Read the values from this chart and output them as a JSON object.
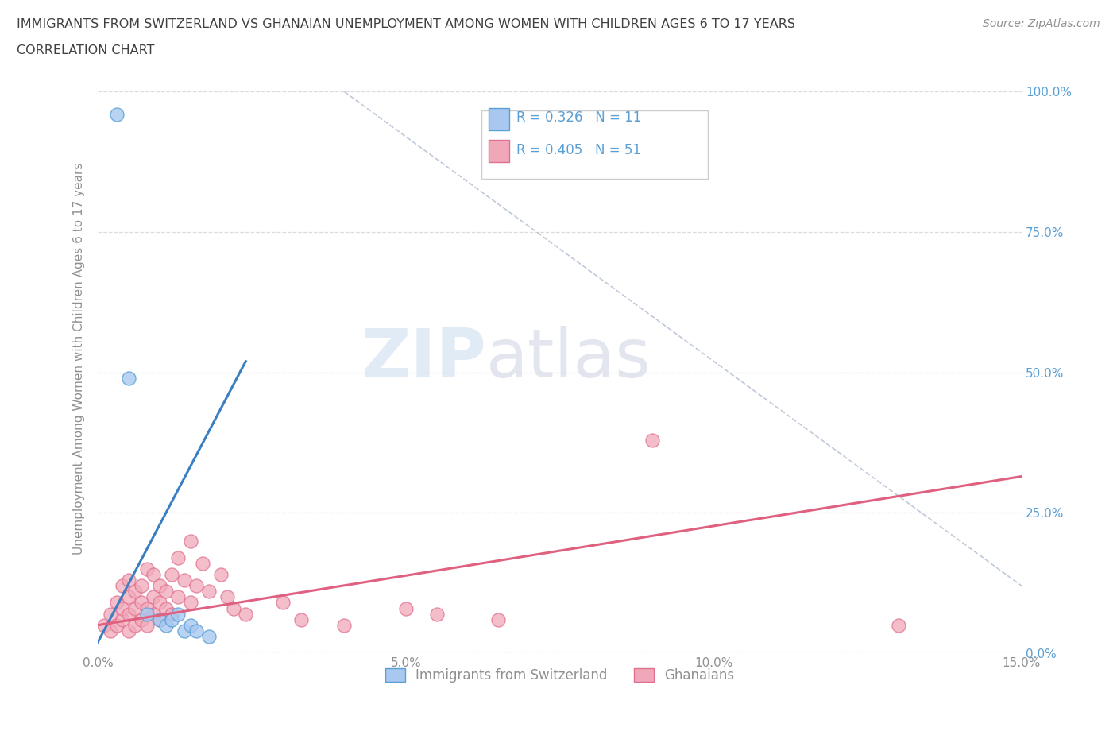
{
  "title_line1": "IMMIGRANTS FROM SWITZERLAND VS GHANAIAN UNEMPLOYMENT AMONG WOMEN WITH CHILDREN AGES 6 TO 17 YEARS",
  "title_line2": "CORRELATION CHART",
  "source_text": "Source: ZipAtlas.com",
  "ylabel": "Unemployment Among Women with Children Ages 6 to 17 years",
  "xlim": [
    0.0,
    0.15
  ],
  "ylim": [
    0.0,
    1.05
  ],
  "xticks": [
    0.0,
    0.05,
    0.1,
    0.15
  ],
  "xtick_labels": [
    "0.0%",
    "5.0%",
    "10.0%",
    "15.0%"
  ],
  "yticks": [
    0.0,
    0.25,
    0.5,
    0.75,
    1.0
  ],
  "ytick_labels_right": [
    "0.0%",
    "25.0%",
    "50.0%",
    "75.0%",
    "100.0%"
  ],
  "swiss_color": "#a8c8f0",
  "swiss_edge_color": "#5a9fd4",
  "swiss_line_color": "#3a7fc1",
  "ghanaian_color": "#f0a8b8",
  "ghanaian_edge_color": "#e07090",
  "ghanaian_line_color": "#e06080",
  "r_swiss": 0.326,
  "n_swiss": 11,
  "r_ghanaian": 0.405,
  "n_ghanaian": 51,
  "legend_swiss": "Immigrants from Switzerland",
  "legend_ghanaian": "Ghanaians",
  "watermark_zip": "ZIP",
  "watermark_atlas": "atlas",
  "background_color": "#ffffff",
  "grid_color": "#d8d8d8",
  "title_color": "#404040",
  "axis_color": "#909090",
  "right_axis_color": "#5a9fd4",
  "swiss_line_x1": 0.0,
  "swiss_line_y1": 0.02,
  "swiss_line_x2": 0.024,
  "swiss_line_y2": 0.52,
  "ghana_line_x1": 0.0,
  "ghana_line_y1": 0.05,
  "ghana_line_x2": 0.15,
  "ghana_line_y2": 0.315,
  "ref_line_x1": 0.04,
  "ref_line_y1": 1.0,
  "ref_line_x2": 0.15,
  "ref_line_y2": 0.12,
  "swiss_scatter_x": [
    0.003,
    0.005,
    0.008,
    0.01,
    0.011,
    0.012,
    0.013,
    0.014,
    0.015,
    0.016,
    0.018
  ],
  "swiss_scatter_y": [
    0.96,
    0.49,
    0.07,
    0.06,
    0.05,
    0.06,
    0.07,
    0.04,
    0.05,
    0.04,
    0.03
  ],
  "ghanaian_scatter_x": [
    0.001,
    0.002,
    0.002,
    0.003,
    0.003,
    0.004,
    0.004,
    0.004,
    0.005,
    0.005,
    0.005,
    0.005,
    0.006,
    0.006,
    0.006,
    0.007,
    0.007,
    0.007,
    0.008,
    0.008,
    0.008,
    0.009,
    0.009,
    0.009,
    0.01,
    0.01,
    0.01,
    0.011,
    0.011,
    0.012,
    0.012,
    0.013,
    0.013,
    0.014,
    0.015,
    0.015,
    0.016,
    0.017,
    0.018,
    0.02,
    0.021,
    0.022,
    0.024,
    0.03,
    0.033,
    0.04,
    0.05,
    0.055,
    0.065,
    0.09,
    0.13
  ],
  "ghanaian_scatter_y": [
    0.05,
    0.04,
    0.07,
    0.05,
    0.09,
    0.06,
    0.08,
    0.12,
    0.04,
    0.07,
    0.1,
    0.13,
    0.05,
    0.08,
    0.11,
    0.06,
    0.09,
    0.12,
    0.05,
    0.08,
    0.15,
    0.07,
    0.1,
    0.14,
    0.06,
    0.09,
    0.12,
    0.08,
    0.11,
    0.07,
    0.14,
    0.1,
    0.17,
    0.13,
    0.09,
    0.2,
    0.12,
    0.16,
    0.11,
    0.14,
    0.1,
    0.08,
    0.07,
    0.09,
    0.06,
    0.05,
    0.08,
    0.07,
    0.06,
    0.38,
    0.05
  ]
}
